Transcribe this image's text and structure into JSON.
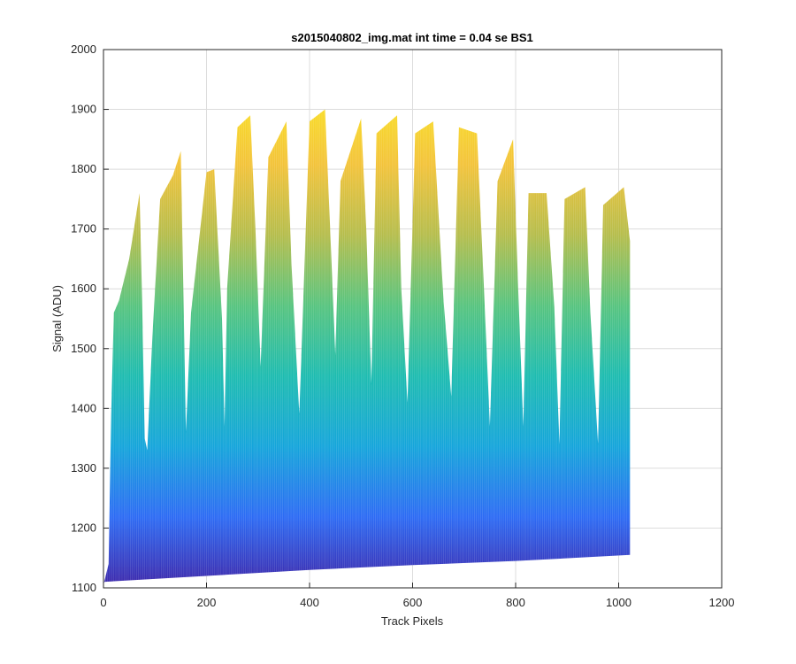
{
  "chart_data": {
    "type": "area",
    "title": "s2015040802_img.mat int time = 0.04 se   BS1",
    "xlabel": "Track Pixels",
    "ylabel": "Signal (ADU)",
    "xlim": [
      0,
      1200
    ],
    "ylim": [
      1100,
      2000
    ],
    "xticks": [
      "0",
      "200",
      "400",
      "600",
      "800",
      "1000",
      "1200"
    ],
    "yticks": [
      "1100",
      "1200",
      "1300",
      "1400",
      "1500",
      "1600",
      "1700",
      "1800",
      "1900",
      "2000"
    ],
    "grid": true,
    "colormap": [
      "#3e26a8",
      "#2d6bf4",
      "#15a5db",
      "#1ebcb0",
      "#57c47f",
      "#b5bd4c",
      "#f3c33a",
      "#fae224"
    ],
    "series": [
      {
        "x": [
          0,
          10,
          15,
          20,
          30,
          50,
          70,
          75,
          80,
          85,
          95,
          110,
          135,
          150,
          155,
          160,
          170,
          200,
          215,
          230,
          235,
          240,
          260,
          285,
          295,
          305,
          320,
          355,
          365,
          380,
          400,
          430,
          440,
          450,
          460,
          500,
          510,
          520,
          530,
          570,
          578,
          590,
          605,
          640,
          660,
          675,
          690,
          725,
          738,
          750,
          765,
          795,
          805,
          815,
          825,
          860,
          875,
          885,
          895,
          935,
          945,
          960,
          970,
          1010,
          1022
        ],
        "y": [
          1105,
          1140,
          1390,
          1560,
          1580,
          1650,
          1760,
          1580,
          1350,
          1330,
          1520,
          1750,
          1790,
          1830,
          1600,
          1360,
          1560,
          1795,
          1800,
          1550,
          1370,
          1600,
          1870,
          1890,
          1700,
          1470,
          1820,
          1880,
          1640,
          1390,
          1880,
          1900,
          1700,
          1490,
          1780,
          1885,
          1700,
          1440,
          1860,
          1890,
          1600,
          1410,
          1860,
          1880,
          1580,
          1420,
          1870,
          1860,
          1610,
          1370,
          1780,
          1850,
          1600,
          1370,
          1760,
          1760,
          1570,
          1340,
          1750,
          1770,
          1560,
          1340,
          1740,
          1770,
          1680
        ],
        "lower_x": [
          0,
          200,
          400,
          600,
          800,
          1022
        ],
        "lower_y": [
          1110,
          1120,
          1130,
          1138,
          1145,
          1155
        ]
      }
    ]
  }
}
